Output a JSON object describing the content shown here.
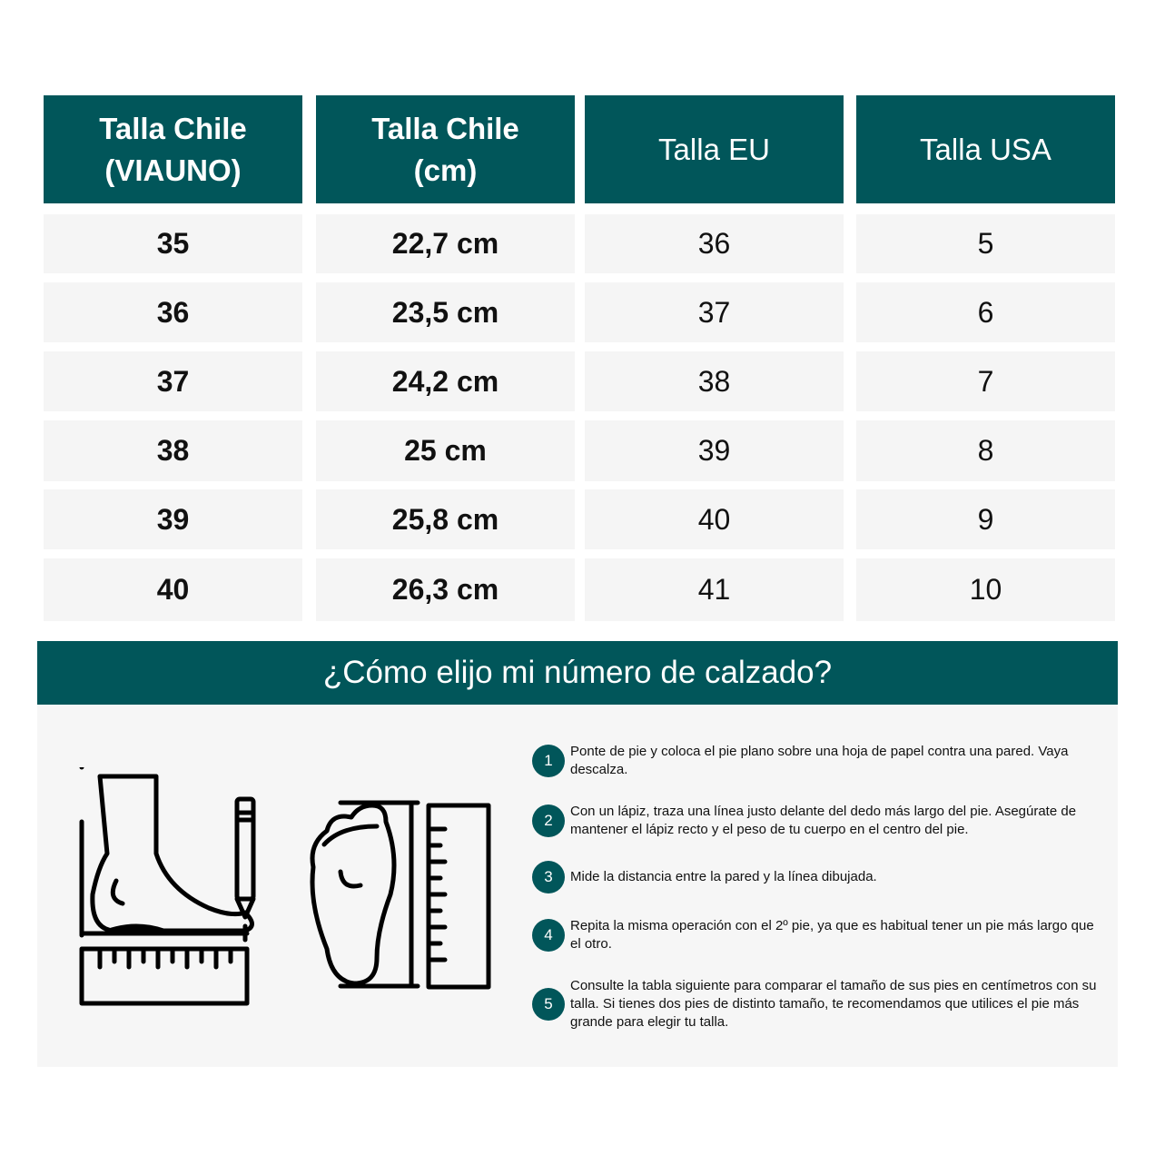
{
  "table": {
    "headers": [
      {
        "line1": "Talla Chile",
        "line2": "(VIAUNO)"
      },
      {
        "line1": "Talla Chile",
        "line2": "(cm)"
      },
      {
        "line1": "Talla EU",
        "line2": ""
      },
      {
        "line1": "Talla USA",
        "line2": ""
      }
    ],
    "rows": [
      [
        "35",
        "22,7 cm",
        "36",
        "5"
      ],
      [
        "36",
        "23,5 cm",
        "37",
        "6"
      ],
      [
        "37",
        "24,2 cm",
        "38",
        "7"
      ],
      [
        "38",
        "25 cm",
        "39",
        "8"
      ],
      [
        "39",
        "25,8 cm",
        "40",
        "9"
      ],
      [
        "40",
        "26,3 cm",
        "41",
        "10"
      ]
    ]
  },
  "guide": {
    "title": "¿Cómo elijo mi número de calzado?",
    "steps": [
      {
        "n": "1",
        "text": "Ponte de pie y coloca el pie plano sobre una hoja de papel contra una pared. Vaya descalza."
      },
      {
        "n": "2",
        "text": "Con un lápiz, traza una línea justo delante del  dedo más largo del pie. Asegúrate de mantener  el lápiz recto y el peso de tu cuerpo en el centro del pie."
      },
      {
        "n": "3",
        "text": "Mide la distancia entre la pared y la línea dibujada."
      },
      {
        "n": "4",
        "text": "Repita la misma operación con el 2º pie, ya que es habitual tener un pie más largo que el otro."
      },
      {
        "n": "5",
        "text": "Consulte la tabla siguiente para comparar el tamaño de sus pies en centímetros con su talla. Si tienes dos pies de distinto tamaño, te recomendamos que utilices el pie más grande para elegir tu talla."
      }
    ],
    "icons": [
      "foot-side-ruler-pencil-icon",
      "foot-sole-ruler-icon"
    ]
  },
  "colors": {
    "accent": "#01565a",
    "row_bg": "#f5f5f5"
  }
}
